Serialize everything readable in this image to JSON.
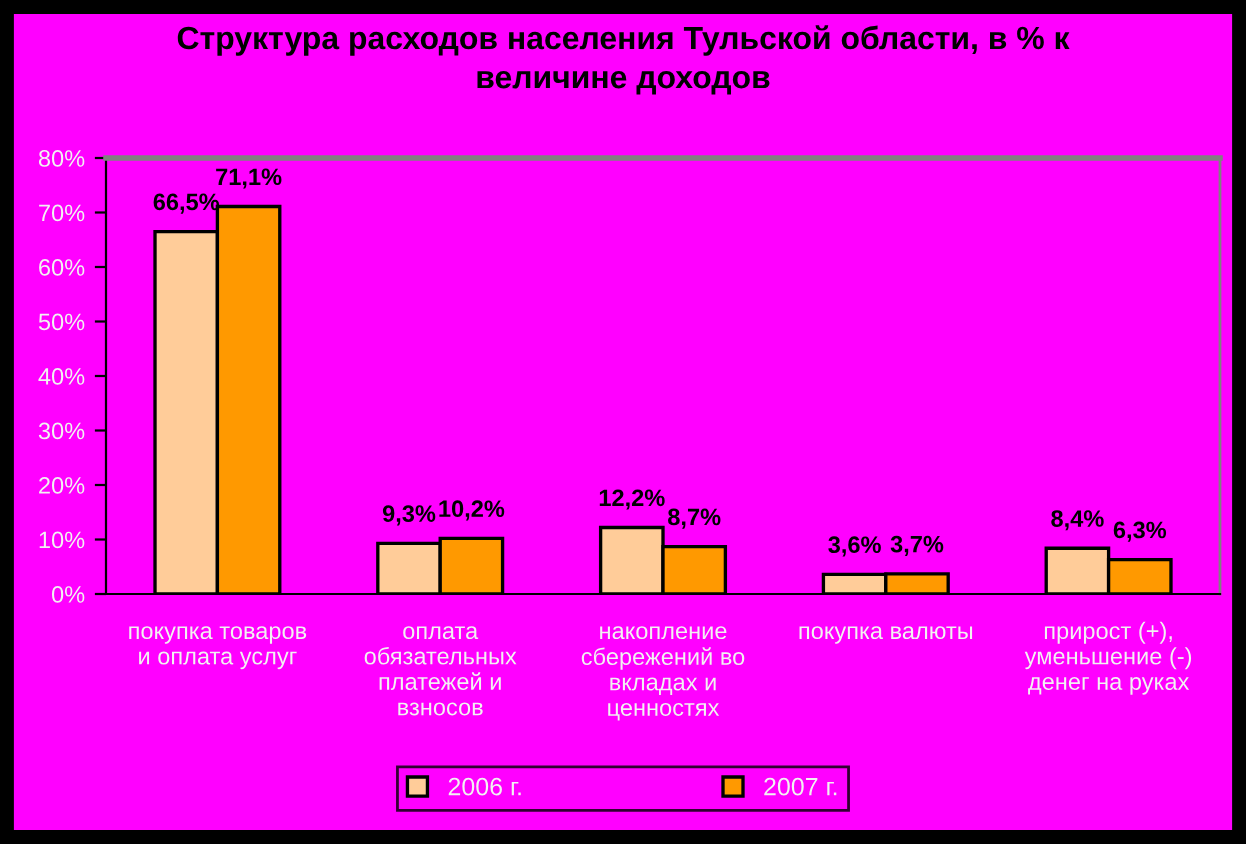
{
  "chart_data": {
    "type": "bar",
    "title": "Структура расходов населения Тульской области, в % к\nвеличине доходов",
    "categories": [
      "покупка товаров\nи оплата услуг",
      "оплата\nобязательных\nплатежей и\nвзносов",
      "накопление\nсбережений во\nвкладах и\nценностях",
      "покупка валюты",
      "прирост (+),\nуменьшение (-)\nденег на руках"
    ],
    "series": [
      {
        "name": "2006 г.",
        "color": "#ffcc99",
        "values": [
          66.5,
          9.3,
          12.2,
          3.6,
          8.4
        ],
        "value_labels": [
          "66,5%",
          "9,3%",
          "12,2%",
          "3,6%",
          "8,4%"
        ]
      },
      {
        "name": "2007 г.",
        "color": "#ff9900",
        "values": [
          71.1,
          10.2,
          8.7,
          3.7,
          6.3
        ],
        "value_labels": [
          "71,1%",
          "10,2%",
          "8,7%",
          "3,7%",
          "6,3%"
        ]
      }
    ],
    "ylim": [
      0,
      80
    ],
    "yticks": [
      {
        "value": 0,
        "label": "0%"
      },
      {
        "value": 10,
        "label": "10%"
      },
      {
        "value": 20,
        "label": "20%"
      },
      {
        "value": 30,
        "label": "30%"
      },
      {
        "value": 40,
        "label": "40%"
      },
      {
        "value": 50,
        "label": "50%"
      },
      {
        "value": 60,
        "label": "60%"
      },
      {
        "value": 70,
        "label": "70%"
      },
      {
        "value": 80,
        "label": "80%"
      }
    ],
    "grid": false,
    "legend": "bottom"
  }
}
